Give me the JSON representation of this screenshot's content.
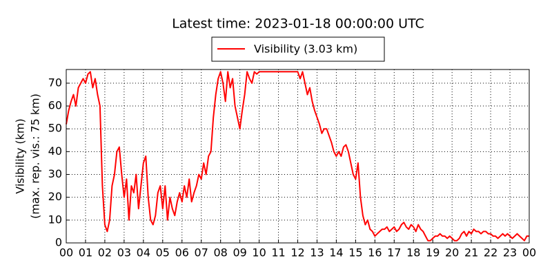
{
  "chart_data": {
    "type": "line",
    "title": "Latest time: 2023-01-18 00:00:00 UTC",
    "y_label": [
      "Visibility (km)",
      "(max. rep. vis.: 75 km)"
    ],
    "legend_position": "top-center",
    "grid": true,
    "xlim": [
      0,
      24
    ],
    "ylim": [
      0,
      76
    ],
    "yticks": [
      0,
      10,
      20,
      30,
      40,
      50,
      60,
      70
    ],
    "xticks": [
      {
        "value": 0,
        "label": "00"
      },
      {
        "value": 1,
        "label": "01"
      },
      {
        "value": 2,
        "label": "02"
      },
      {
        "value": 3,
        "label": "03"
      },
      {
        "value": 4,
        "label": "04"
      },
      {
        "value": 5,
        "label": "05"
      },
      {
        "value": 6,
        "label": "06"
      },
      {
        "value": 7,
        "label": "07"
      },
      {
        "value": 8,
        "label": "08"
      },
      {
        "value": 9,
        "label": "09"
      },
      {
        "value": 10,
        "label": "10"
      },
      {
        "value": 11,
        "label": "11"
      },
      {
        "value": 12,
        "label": "12"
      },
      {
        "value": 13,
        "label": "13"
      },
      {
        "value": 14,
        "label": "14"
      },
      {
        "value": 15,
        "label": "15"
      },
      {
        "value": 16,
        "label": "16"
      },
      {
        "value": 17,
        "label": "17"
      },
      {
        "value": 18,
        "label": "18"
      },
      {
        "value": 19,
        "label": "19"
      },
      {
        "value": 20,
        "label": "20"
      },
      {
        "value": 21,
        "label": "21"
      },
      {
        "value": 22,
        "label": "22"
      },
      {
        "value": 23,
        "label": "23"
      },
      {
        "value": 24,
        "label": "00"
      }
    ],
    "x": [
      0,
      0.125,
      0.25,
      0.375,
      0.5,
      0.625,
      0.75,
      0.875,
      1,
      1.125,
      1.25,
      1.375,
      1.5,
      1.625,
      1.75,
      1.875,
      2,
      2.125,
      2.25,
      2.375,
      2.5,
      2.625,
      2.75,
      2.875,
      3,
      3.125,
      3.25,
      3.375,
      3.5,
      3.625,
      3.75,
      3.875,
      4,
      4.125,
      4.25,
      4.375,
      4.5,
      4.625,
      4.75,
      4.875,
      5,
      5.125,
      5.25,
      5.375,
      5.5,
      5.625,
      5.75,
      5.875,
      6,
      6.125,
      6.25,
      6.375,
      6.5,
      6.625,
      6.75,
      6.875,
      7,
      7.125,
      7.25,
      7.375,
      7.5,
      7.625,
      7.75,
      7.875,
      8,
      8.125,
      8.25,
      8.375,
      8.5,
      8.625,
      8.75,
      8.875,
      9,
      9.125,
      9.25,
      9.375,
      9.5,
      9.625,
      9.75,
      9.875,
      10,
      10.125,
      10.25,
      10.375,
      10.5,
      10.625,
      10.75,
      10.875,
      11,
      11.125,
      11.25,
      11.375,
      11.5,
      11.625,
      11.75,
      11.875,
      12,
      12.125,
      12.25,
      12.375,
      12.5,
      12.625,
      12.75,
      12.875,
      13,
      13.125,
      13.25,
      13.375,
      13.5,
      13.625,
      13.75,
      13.875,
      14,
      14.125,
      14.25,
      14.375,
      14.5,
      14.625,
      14.75,
      14.875,
      15,
      15.125,
      15.25,
      15.375,
      15.5,
      15.625,
      15.75,
      15.875,
      16,
      16.125,
      16.25,
      16.375,
      16.5,
      16.625,
      16.75,
      16.875,
      17,
      17.125,
      17.25,
      17.375,
      17.5,
      17.625,
      17.75,
      17.875,
      18,
      18.125,
      18.25,
      18.375,
      18.5,
      18.625,
      18.75,
      18.875,
      19,
      19.125,
      19.25,
      19.375,
      19.5,
      19.625,
      19.75,
      19.875,
      20,
      20.125,
      20.25,
      20.375,
      20.5,
      20.625,
      20.75,
      20.875,
      21,
      21.125,
      21.25,
      21.375,
      21.5,
      21.625,
      21.75,
      21.875,
      22,
      22.125,
      22.25,
      22.375,
      22.5,
      22.625,
      22.75,
      22.875,
      23,
      23.125,
      23.25,
      23.375,
      23.5,
      23.625,
      23.75,
      23.875,
      24
    ],
    "series": [
      {
        "name": "Visibility (3.03 km)",
        "color": "#ff0000",
        "values": [
          52,
          58,
          62,
          65,
          60,
          68,
          70,
          72,
          70,
          74,
          75,
          68,
          72,
          65,
          60,
          25,
          8,
          5,
          10,
          25,
          30,
          40,
          42,
          30,
          20,
          28,
          10,
          25,
          22,
          30,
          15,
          25,
          35,
          38,
          20,
          10,
          8,
          12,
          22,
          25,
          15,
          25,
          10,
          20,
          15,
          12,
          18,
          22,
          18,
          25,
          20,
          28,
          18,
          22,
          25,
          30,
          28,
          35,
          30,
          38,
          40,
          55,
          65,
          72,
          75,
          70,
          62,
          75,
          68,
          72,
          60,
          55,
          50,
          58,
          65,
          75,
          72,
          70,
          75,
          74,
          75,
          75,
          75,
          75,
          75,
          75,
          75,
          75,
          75,
          75,
          75,
          75,
          75,
          75,
          75,
          75,
          75,
          72,
          75,
          70,
          65,
          68,
          62,
          58,
          55,
          52,
          48,
          50,
          50,
          47,
          44,
          40,
          38,
          40,
          38,
          42,
          43,
          40,
          35,
          30,
          28,
          35,
          20,
          12,
          8,
          10,
          6,
          5,
          3,
          4,
          5,
          6,
          6,
          7,
          5,
          6,
          7,
          5,
          6,
          8,
          9,
          7,
          6,
          8,
          7,
          5,
          8,
          6,
          5,
          3,
          1,
          1,
          2,
          3,
          3,
          4,
          3,
          3,
          2,
          3,
          2,
          1,
          1,
          2,
          4,
          5,
          3,
          5,
          4,
          6,
          5,
          5,
          4,
          5,
          5,
          4,
          4,
          3,
          3,
          2,
          3,
          4,
          3,
          4,
          3,
          2,
          3,
          4,
          3,
          2,
          1,
          3,
          3
        ]
      }
    ]
  }
}
